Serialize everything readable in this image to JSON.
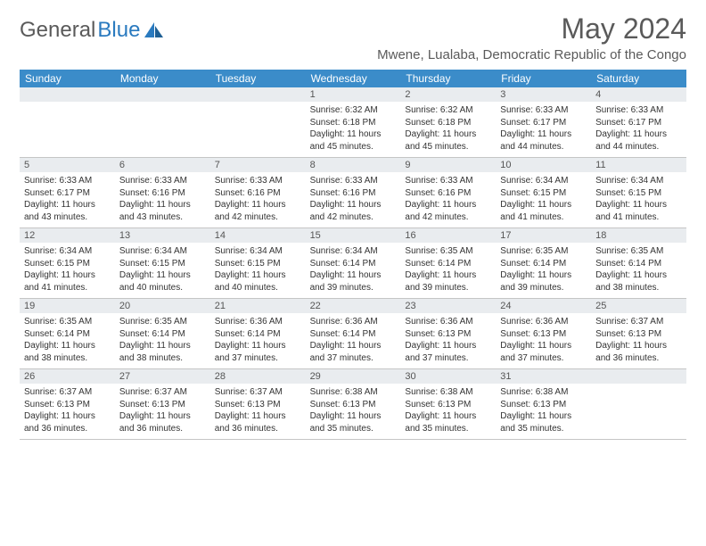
{
  "logo": {
    "part1": "General",
    "part2": "Blue"
  },
  "title": "May 2024",
  "location": "Mwene, Lualaba, Democratic Republic of the Congo",
  "colors": {
    "header_bar": "#3b8cc9",
    "day_header_bg": "#e9ecef",
    "text": "#333333",
    "muted": "#5a5a5a",
    "logo_blue": "#2a7abf"
  },
  "weekdays": [
    "Sunday",
    "Monday",
    "Tuesday",
    "Wednesday",
    "Thursday",
    "Friday",
    "Saturday"
  ],
  "weeks": [
    [
      {
        "n": "",
        "sr": "",
        "ss": "",
        "dl": ""
      },
      {
        "n": "",
        "sr": "",
        "ss": "",
        "dl": ""
      },
      {
        "n": "",
        "sr": "",
        "ss": "",
        "dl": ""
      },
      {
        "n": "1",
        "sr": "Sunrise: 6:32 AM",
        "ss": "Sunset: 6:18 PM",
        "dl": "Daylight: 11 hours and 45 minutes."
      },
      {
        "n": "2",
        "sr": "Sunrise: 6:32 AM",
        "ss": "Sunset: 6:18 PM",
        "dl": "Daylight: 11 hours and 45 minutes."
      },
      {
        "n": "3",
        "sr": "Sunrise: 6:33 AM",
        "ss": "Sunset: 6:17 PM",
        "dl": "Daylight: 11 hours and 44 minutes."
      },
      {
        "n": "4",
        "sr": "Sunrise: 6:33 AM",
        "ss": "Sunset: 6:17 PM",
        "dl": "Daylight: 11 hours and 44 minutes."
      }
    ],
    [
      {
        "n": "5",
        "sr": "Sunrise: 6:33 AM",
        "ss": "Sunset: 6:17 PM",
        "dl": "Daylight: 11 hours and 43 minutes."
      },
      {
        "n": "6",
        "sr": "Sunrise: 6:33 AM",
        "ss": "Sunset: 6:16 PM",
        "dl": "Daylight: 11 hours and 43 minutes."
      },
      {
        "n": "7",
        "sr": "Sunrise: 6:33 AM",
        "ss": "Sunset: 6:16 PM",
        "dl": "Daylight: 11 hours and 42 minutes."
      },
      {
        "n": "8",
        "sr": "Sunrise: 6:33 AM",
        "ss": "Sunset: 6:16 PM",
        "dl": "Daylight: 11 hours and 42 minutes."
      },
      {
        "n": "9",
        "sr": "Sunrise: 6:33 AM",
        "ss": "Sunset: 6:16 PM",
        "dl": "Daylight: 11 hours and 42 minutes."
      },
      {
        "n": "10",
        "sr": "Sunrise: 6:34 AM",
        "ss": "Sunset: 6:15 PM",
        "dl": "Daylight: 11 hours and 41 minutes."
      },
      {
        "n": "11",
        "sr": "Sunrise: 6:34 AM",
        "ss": "Sunset: 6:15 PM",
        "dl": "Daylight: 11 hours and 41 minutes."
      }
    ],
    [
      {
        "n": "12",
        "sr": "Sunrise: 6:34 AM",
        "ss": "Sunset: 6:15 PM",
        "dl": "Daylight: 11 hours and 41 minutes."
      },
      {
        "n": "13",
        "sr": "Sunrise: 6:34 AM",
        "ss": "Sunset: 6:15 PM",
        "dl": "Daylight: 11 hours and 40 minutes."
      },
      {
        "n": "14",
        "sr": "Sunrise: 6:34 AM",
        "ss": "Sunset: 6:15 PM",
        "dl": "Daylight: 11 hours and 40 minutes."
      },
      {
        "n": "15",
        "sr": "Sunrise: 6:34 AM",
        "ss": "Sunset: 6:14 PM",
        "dl": "Daylight: 11 hours and 39 minutes."
      },
      {
        "n": "16",
        "sr": "Sunrise: 6:35 AM",
        "ss": "Sunset: 6:14 PM",
        "dl": "Daylight: 11 hours and 39 minutes."
      },
      {
        "n": "17",
        "sr": "Sunrise: 6:35 AM",
        "ss": "Sunset: 6:14 PM",
        "dl": "Daylight: 11 hours and 39 minutes."
      },
      {
        "n": "18",
        "sr": "Sunrise: 6:35 AM",
        "ss": "Sunset: 6:14 PM",
        "dl": "Daylight: 11 hours and 38 minutes."
      }
    ],
    [
      {
        "n": "19",
        "sr": "Sunrise: 6:35 AM",
        "ss": "Sunset: 6:14 PM",
        "dl": "Daylight: 11 hours and 38 minutes."
      },
      {
        "n": "20",
        "sr": "Sunrise: 6:35 AM",
        "ss": "Sunset: 6:14 PM",
        "dl": "Daylight: 11 hours and 38 minutes."
      },
      {
        "n": "21",
        "sr": "Sunrise: 6:36 AM",
        "ss": "Sunset: 6:14 PM",
        "dl": "Daylight: 11 hours and 37 minutes."
      },
      {
        "n": "22",
        "sr": "Sunrise: 6:36 AM",
        "ss": "Sunset: 6:14 PM",
        "dl": "Daylight: 11 hours and 37 minutes."
      },
      {
        "n": "23",
        "sr": "Sunrise: 6:36 AM",
        "ss": "Sunset: 6:13 PM",
        "dl": "Daylight: 11 hours and 37 minutes."
      },
      {
        "n": "24",
        "sr": "Sunrise: 6:36 AM",
        "ss": "Sunset: 6:13 PM",
        "dl": "Daylight: 11 hours and 37 minutes."
      },
      {
        "n": "25",
        "sr": "Sunrise: 6:37 AM",
        "ss": "Sunset: 6:13 PM",
        "dl": "Daylight: 11 hours and 36 minutes."
      }
    ],
    [
      {
        "n": "26",
        "sr": "Sunrise: 6:37 AM",
        "ss": "Sunset: 6:13 PM",
        "dl": "Daylight: 11 hours and 36 minutes."
      },
      {
        "n": "27",
        "sr": "Sunrise: 6:37 AM",
        "ss": "Sunset: 6:13 PM",
        "dl": "Daylight: 11 hours and 36 minutes."
      },
      {
        "n": "28",
        "sr": "Sunrise: 6:37 AM",
        "ss": "Sunset: 6:13 PM",
        "dl": "Daylight: 11 hours and 36 minutes."
      },
      {
        "n": "29",
        "sr": "Sunrise: 6:38 AM",
        "ss": "Sunset: 6:13 PM",
        "dl": "Daylight: 11 hours and 35 minutes."
      },
      {
        "n": "30",
        "sr": "Sunrise: 6:38 AM",
        "ss": "Sunset: 6:13 PM",
        "dl": "Daylight: 11 hours and 35 minutes."
      },
      {
        "n": "31",
        "sr": "Sunrise: 6:38 AM",
        "ss": "Sunset: 6:13 PM",
        "dl": "Daylight: 11 hours and 35 minutes."
      },
      {
        "n": "",
        "sr": "",
        "ss": "",
        "dl": ""
      }
    ]
  ]
}
